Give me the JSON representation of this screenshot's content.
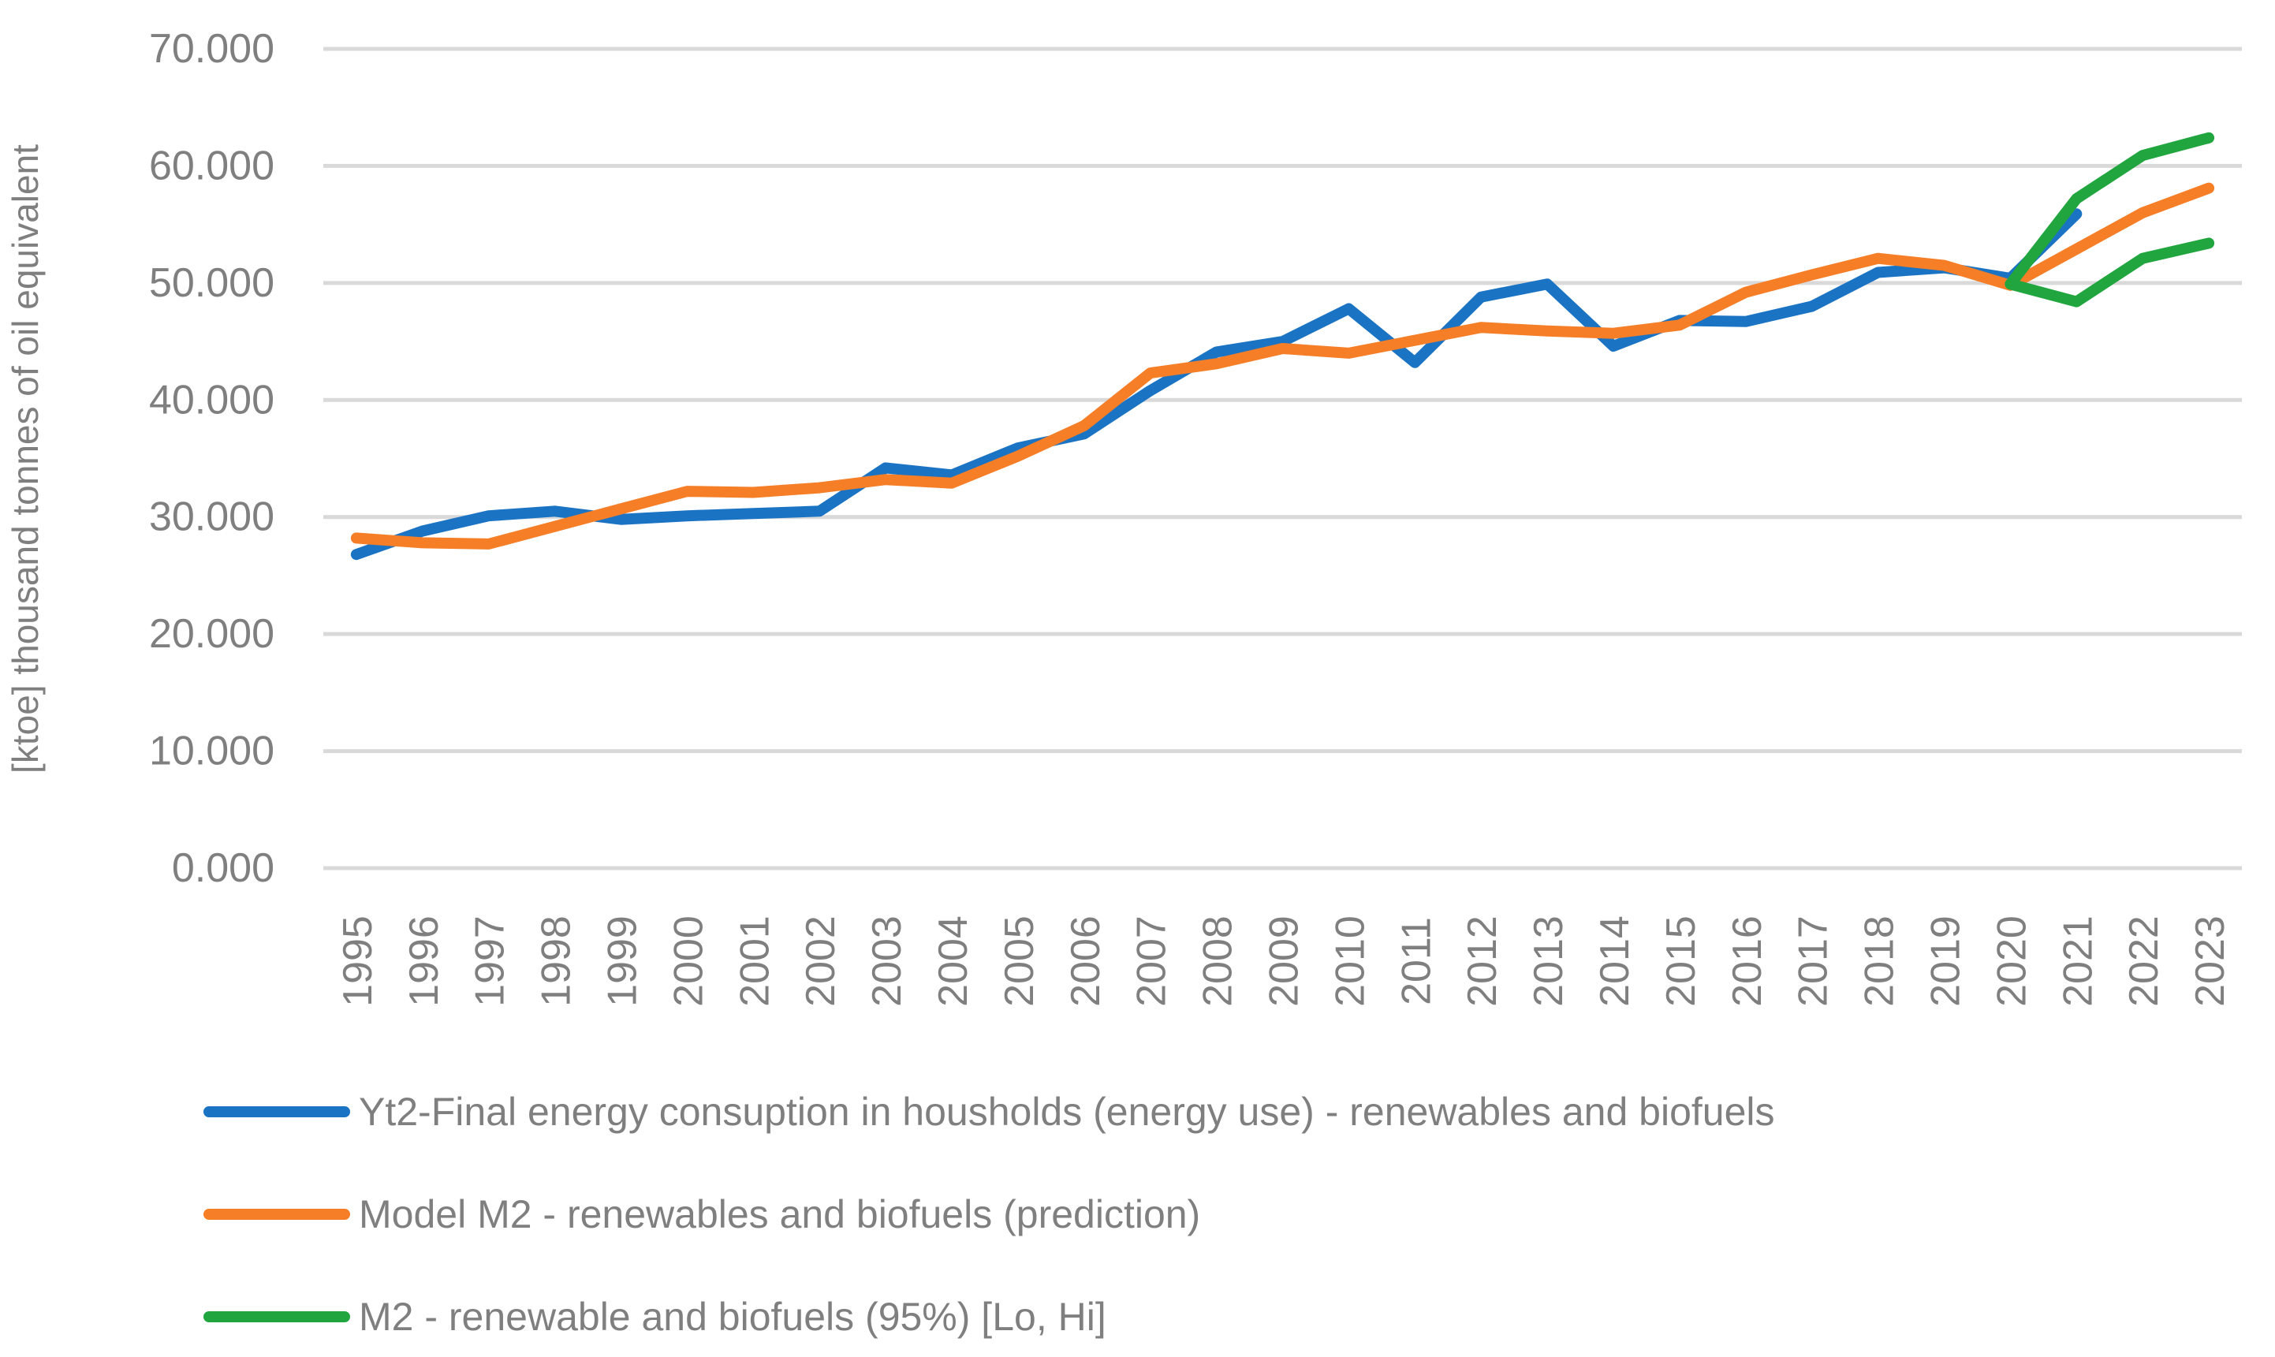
{
  "chart_data": {
    "type": "line",
    "title": "",
    "xlabel": "",
    "ylabel": "[ktoe] thousand tonnes of oil equivalent",
    "ylim": [
      0,
      70000
    ],
    "ytick_step": 10000,
    "grid": true,
    "legend_position": "bottom-left",
    "y_tick_labels": [
      "0.000",
      "10.000",
      "20.000",
      "30.000",
      "40.000",
      "50.000",
      "60.000",
      "70.000"
    ],
    "categories": [
      "1995",
      "1996",
      "1997",
      "1998",
      "1999",
      "2000",
      "2001",
      "2002",
      "2003",
      "2004",
      "2005",
      "2006",
      "2007",
      "2008",
      "2009",
      "2010",
      "2011",
      "2012",
      "2013",
      "2014",
      "2015",
      "2016",
      "2017",
      "2018",
      "2019",
      "2020",
      "2021",
      "2022",
      "2023"
    ],
    "series": [
      {
        "id": "yt2-actual",
        "name": "Yt2-Final energy consuption in housholds (energy use) - renewables and biofuels",
        "color": "#1B73C4",
        "values": [
          26800,
          28800,
          30100,
          30500,
          29800,
          30100,
          30300,
          30500,
          34200,
          33600,
          35900,
          37100,
          40800,
          44100,
          45000,
          47800,
          43200,
          48800,
          49900,
          44600,
          46800,
          46700,
          48000,
          50900,
          51300,
          50400,
          55900,
          null,
          null
        ]
      },
      {
        "id": "m2-prediction",
        "name": "Model M2 - renewables and biofuels (prediction)",
        "color": "#F57E27",
        "values": [
          28200,
          27800,
          27700,
          29200,
          30700,
          32200,
          32100,
          32500,
          33200,
          32900,
          35200,
          37800,
          42300,
          43100,
          44400,
          44000,
          45100,
          46200,
          45900,
          45700,
          46400,
          49200,
          50700,
          52100,
          51500,
          49800,
          52900,
          56000,
          58100
        ]
      },
      {
        "id": "m2-ci-hi",
        "name": "M2 - renewable and biofuels (95%) [Lo, Hi]",
        "color": "#21A53E",
        "values": [
          null,
          null,
          null,
          null,
          null,
          null,
          null,
          null,
          null,
          null,
          null,
          null,
          null,
          null,
          null,
          null,
          null,
          null,
          null,
          null,
          null,
          null,
          null,
          null,
          null,
          49900,
          57200,
          60900,
          62400
        ]
      },
      {
        "id": "m2-ci-lo",
        "name": "M2 - renewable and biofuels (95%) [Lo, Hi]",
        "color": "#21A53E",
        "values": [
          null,
          null,
          null,
          null,
          null,
          null,
          null,
          null,
          null,
          null,
          null,
          null,
          null,
          null,
          null,
          null,
          null,
          null,
          null,
          null,
          null,
          null,
          null,
          null,
          null,
          49900,
          48400,
          52100,
          53400
        ]
      }
    ],
    "legend": [
      {
        "label": "Yt2-Final energy consuption in housholds (energy use) - renewables and biofuels",
        "color": "#1B73C4"
      },
      {
        "label": "Model M2 - renewables and biofuels (prediction)",
        "color": "#F57E27"
      },
      {
        "label": "M2 - renewable and biofuels (95%) [Lo, Hi]",
        "color": "#21A53E"
      }
    ],
    "colors": {
      "grid": "#D9D9D9",
      "text": "#7F7F7F",
      "background": "#FFFFFF"
    }
  }
}
